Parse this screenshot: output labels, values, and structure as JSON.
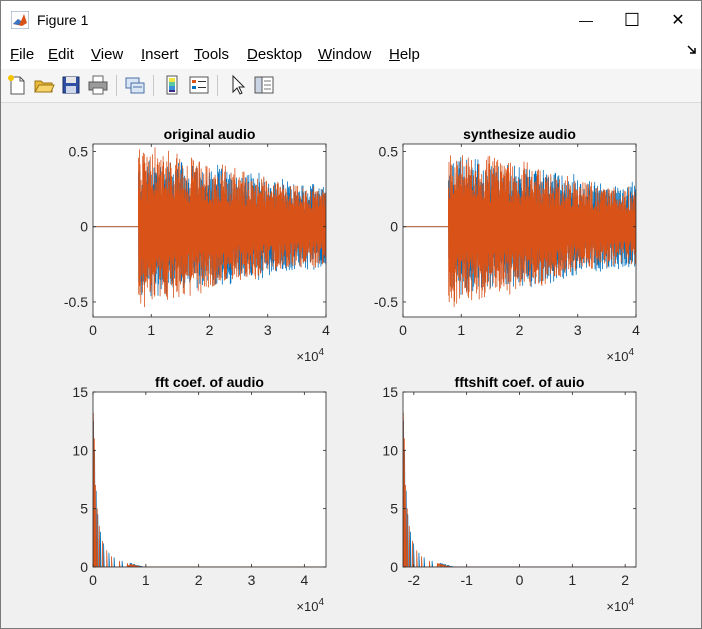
{
  "window": {
    "title": "Figure 1",
    "minimize_glyph": "—",
    "maximize_glyph": "☐",
    "close_glyph": "✕"
  },
  "menu": [
    {
      "label": "File",
      "acc": "F",
      "rest": "ile"
    },
    {
      "label": "Edit",
      "acc": "E",
      "rest": "dit"
    },
    {
      "label": "View",
      "acc": "V",
      "rest": "iew"
    },
    {
      "label": "Insert",
      "acc": "I",
      "rest": "nsert"
    },
    {
      "label": "Tools",
      "acc": "T",
      "rest": "ools"
    },
    {
      "label": "Desktop",
      "acc": "D",
      "rest": "esktop"
    },
    {
      "label": "Window",
      "acc": "W",
      "rest": "indow"
    },
    {
      "label": "Help",
      "acc": "H",
      "rest": "elp"
    }
  ],
  "toolbar": [
    "new-figure-icon",
    "open-file-icon",
    "save-icon",
    "print-icon",
    "link-icon",
    "colorbar-icon",
    "legend-icon",
    "pointer-icon",
    "property-editor-icon"
  ],
  "colors": {
    "series1": "#0072bd",
    "series2": "#d95319",
    "axes": "#262626",
    "window_bg": "#f0f0f0"
  },
  "chart_data": [
    {
      "type": "line",
      "title": "original audio",
      "xlim": [
        0,
        40000
      ],
      "ylim": [
        -0.6,
        0.55
      ],
      "xticks": [
        0,
        10000,
        20000,
        30000,
        40000
      ],
      "xticklabels": [
        "0",
        "1",
        "2",
        "3",
        "4"
      ],
      "yticks": [
        -0.5,
        0,
        0.5
      ],
      "yticklabels": [
        "-0.5",
        "0",
        "0.5"
      ],
      "exponent_label": "×10",
      "exponent_power": "4",
      "series": [
        {
          "silence_until": 7800,
          "envelope": [
            [
              7800,
              0.48
            ],
            [
              10000,
              0.5
            ],
            [
              15000,
              0.45
            ],
            [
              20000,
              0.42
            ],
            [
              25000,
              0.4
            ],
            [
              30000,
              0.35
            ],
            [
              35000,
              0.3
            ],
            [
              40000,
              0.3
            ]
          ]
        },
        {
          "silence_until": 7800,
          "envelope": [
            [
              7800,
              0.55
            ],
            [
              10000,
              0.55
            ],
            [
              15000,
              0.5
            ],
            [
              20000,
              0.45
            ],
            [
              25000,
              0.4
            ],
            [
              30000,
              0.33
            ],
            [
              35000,
              0.28
            ],
            [
              40000,
              0.28
            ]
          ]
        }
      ]
    },
    {
      "type": "line",
      "title": "synthesize audio",
      "xlim": [
        0,
        40000
      ],
      "ylim": [
        -0.6,
        0.55
      ],
      "xticks": [
        0,
        10000,
        20000,
        30000,
        40000
      ],
      "xticklabels": [
        "0",
        "1",
        "2",
        "3",
        "4"
      ],
      "yticks": [
        -0.5,
        0,
        0.5
      ],
      "yticklabels": [
        "-0.5",
        "0",
        "0.5"
      ],
      "exponent_label": "×10",
      "exponent_power": "4",
      "series": [
        {
          "silence_until": 7800,
          "envelope": [
            [
              7800,
              0.48
            ],
            [
              10000,
              0.5
            ],
            [
              15000,
              0.45
            ],
            [
              20000,
              0.42
            ],
            [
              25000,
              0.4
            ],
            [
              30000,
              0.35
            ],
            [
              35000,
              0.3
            ],
            [
              40000,
              0.3
            ]
          ]
        },
        {
          "silence_until": 7800,
          "envelope": [
            [
              7800,
              0.55
            ],
            [
              10000,
              0.55
            ],
            [
              15000,
              0.5
            ],
            [
              20000,
              0.45
            ],
            [
              25000,
              0.4
            ],
            [
              30000,
              0.33
            ],
            [
              35000,
              0.28
            ],
            [
              40000,
              0.28
            ]
          ]
        }
      ]
    },
    {
      "type": "line",
      "title": "fft coef. of audio",
      "xlim": [
        0,
        44100
      ],
      "ylim": [
        0,
        15
      ],
      "xticks": [
        0,
        10000,
        20000,
        30000,
        40000
      ],
      "xticklabels": [
        "0",
        "1",
        "2",
        "3",
        "4"
      ],
      "yticks": [
        0,
        5,
        10,
        15
      ],
      "yticklabels": [
        "0",
        "5",
        "10",
        "15"
      ],
      "exponent_label": "×10",
      "exponent_power": "4",
      "series": [
        {
          "peaks": [
            [
              100,
              12.5
            ],
            [
              300,
              10
            ],
            [
              600,
              6.5
            ],
            [
              900,
              4.5
            ],
            [
              1400,
              3
            ],
            [
              2000,
              2
            ],
            [
              3000,
              1.2
            ],
            [
              4000,
              0.8
            ],
            [
              5500,
              0.5
            ],
            [
              7000,
              0.3
            ]
          ]
        },
        {
          "peaks": [
            [
              50,
              13.2
            ],
            [
              250,
              11
            ],
            [
              500,
              7
            ],
            [
              800,
              5
            ],
            [
              1200,
              3.5
            ],
            [
              1800,
              2.2
            ],
            [
              2600,
              1.4
            ],
            [
              3500,
              0.9
            ],
            [
              5000,
              0.5
            ],
            [
              6500,
              0.3
            ]
          ]
        }
      ]
    },
    {
      "type": "line",
      "title": "fftshift coef. of auio",
      "xlim": [
        -22050,
        22050
      ],
      "ylim": [
        0,
        15
      ],
      "xticks": [
        -20000,
        -10000,
        0,
        10000,
        20000
      ],
      "xticklabels": [
        "-2",
        "-1",
        "0",
        "1",
        "2"
      ],
      "yticks": [
        0,
        5,
        10,
        15
      ],
      "yticklabels": [
        "0",
        "5",
        "10",
        "15"
      ],
      "exponent_label": "×10",
      "exponent_power": "4",
      "series": [
        {
          "peaks": [
            [
              -21950,
              12.5
            ],
            [
              -21750,
              10
            ],
            [
              -21450,
              6.5
            ],
            [
              -21150,
              4.5
            ],
            [
              -20650,
              3
            ],
            [
              -20050,
              2
            ],
            [
              -19050,
              1.2
            ],
            [
              -18050,
              0.8
            ],
            [
              -16550,
              0.5
            ],
            [
              -15050,
              0.3
            ]
          ]
        },
        {
          "peaks": [
            [
              -22000,
              13.2
            ],
            [
              -21800,
              11
            ],
            [
              -21550,
              7
            ],
            [
              -21250,
              5
            ],
            [
              -20850,
              3.5
            ],
            [
              -20250,
              2.2
            ],
            [
              -19450,
              1.4
            ],
            [
              -18550,
              0.9
            ],
            [
              -17050,
              0.5
            ],
            [
              -15550,
              0.3
            ]
          ]
        }
      ]
    }
  ]
}
